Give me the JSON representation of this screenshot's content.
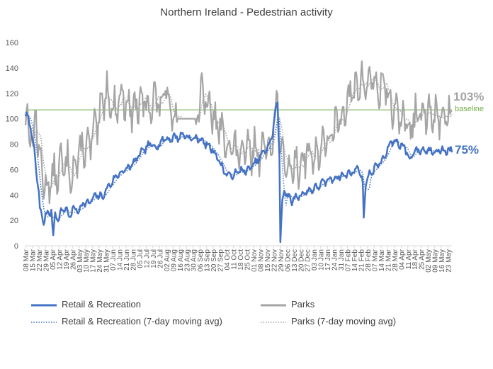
{
  "chart_data": {
    "type": "line",
    "title": "Northern Ireland - Pedestrian activity",
    "xlabel": "",
    "ylabel": "",
    "ylim": [
      0,
      160
    ],
    "yticks": [
      0,
      20,
      40,
      60,
      80,
      100,
      120,
      140,
      160
    ],
    "x_start": "2020-03-08",
    "x_end": "2021-05-27",
    "xtick_labels": [
      "08 Mar",
      "15 Mar",
      "22 Mar",
      "29 Mar",
      "05 Apr",
      "12 Apr",
      "19 Apr",
      "26 Apr",
      "03 May",
      "10 May",
      "17 May",
      "24 May",
      "31 May",
      "07 Jun",
      "14 Jun",
      "21 Jun",
      "28 Jun",
      "05 Jul",
      "12 Jul",
      "19 Jul",
      "26 Jul",
      "02 Aug",
      "09 Aug",
      "16 Aug",
      "23 Aug",
      "30 Aug",
      "06 Sep",
      "13 Sep",
      "20 Sep",
      "27 Sep",
      "04 Oct",
      "11 Oct",
      "18 Oct",
      "25 Oct",
      "01 Nov",
      "08 Nov",
      "15 Nov",
      "22 Nov",
      "29 Nov",
      "06 Dec",
      "13 Dec",
      "20 Dec",
      "27 Dec",
      "03 Jan",
      "10 Jan",
      "17 Jan",
      "24 Jan",
      "31 Jan",
      "07 Feb",
      "14 Feb",
      "21 Feb",
      "28 Feb",
      "07 Mar",
      "14 Mar",
      "21 Mar",
      "28 Mar",
      "04 Apr",
      "11 Apr",
      "18 Apr",
      "25 Apr",
      "02 May",
      "09 May",
      "16 May",
      "23 May"
    ],
    "baseline": {
      "value": 107,
      "label": "baseline",
      "color": "#70ad47"
    },
    "end_labels": {
      "parks": "103%",
      "retail": "75%"
    },
    "series": [
      {
        "name": "Retail & Recreation",
        "color": "#4472c4",
        "style": "solid",
        "key_points": [
          [
            0,
            103
          ],
          [
            4,
            98
          ],
          [
            8,
            82
          ],
          [
            11,
            60
          ],
          [
            14,
            42
          ],
          [
            15,
            27
          ],
          [
            17,
            24
          ],
          [
            19,
            17
          ],
          [
            21,
            26
          ],
          [
            24,
            24
          ],
          [
            27,
            28
          ],
          [
            29,
            7
          ],
          [
            31,
            27
          ],
          [
            34,
            20
          ],
          [
            38,
            28
          ],
          [
            42,
            30
          ],
          [
            46,
            22
          ],
          [
            50,
            30
          ],
          [
            55,
            27
          ],
          [
            60,
            34
          ],
          [
            65,
            33
          ],
          [
            70,
            37
          ],
          [
            75,
            40
          ],
          [
            80,
            38
          ],
          [
            85,
            45
          ],
          [
            90,
            50
          ],
          [
            95,
            55
          ],
          [
            100,
            58
          ],
          [
            105,
            60
          ],
          [
            110,
            63
          ],
          [
            115,
            67
          ],
          [
            120,
            73
          ],
          [
            125,
            76
          ],
          [
            130,
            80
          ],
          [
            135,
            78
          ],
          [
            140,
            80
          ],
          [
            145,
            85
          ],
          [
            150,
            83
          ],
          [
            155,
            86
          ],
          [
            160,
            85
          ],
          [
            165,
            88
          ],
          [
            170,
            85
          ],
          [
            175,
            84
          ],
          [
            180,
            85
          ],
          [
            185,
            82
          ],
          [
            190,
            79
          ],
          [
            195,
            76
          ],
          [
            200,
            70
          ],
          [
            205,
            62
          ],
          [
            210,
            56
          ],
          [
            215,
            55
          ],
          [
            220,
            57
          ],
          [
            225,
            60
          ],
          [
            230,
            58
          ],
          [
            235,
            62
          ],
          [
            240,
            65
          ],
          [
            245,
            70
          ],
          [
            250,
            75
          ],
          [
            255,
            80
          ],
          [
            258,
            90
          ],
          [
            261,
            105
          ],
          [
            263,
            115
          ],
          [
            265,
            70
          ],
          [
            266,
            3
          ],
          [
            268,
            35
          ],
          [
            270,
            45
          ],
          [
            273,
            40
          ],
          [
            277,
            35
          ],
          [
            282,
            38
          ],
          [
            287,
            40
          ],
          [
            292,
            42
          ],
          [
            297,
            44
          ],
          [
            302,
            45
          ],
          [
            307,
            48
          ],
          [
            312,
            50
          ],
          [
            317,
            52
          ],
          [
            322,
            53
          ],
          [
            327,
            55
          ],
          [
            332,
            55
          ],
          [
            337,
            57
          ],
          [
            342,
            58
          ],
          [
            345,
            60
          ],
          [
            348,
            62
          ],
          [
            352,
            48
          ],
          [
            353,
            22
          ],
          [
            355,
            50
          ],
          [
            360,
            57
          ],
          [
            365,
            62
          ],
          [
            370,
            65
          ],
          [
            375,
            70
          ],
          [
            380,
            80
          ],
          [
            385,
            83
          ],
          [
            390,
            80
          ],
          [
            395,
            78
          ],
          [
            399,
            72
          ],
          [
            401,
            67
          ],
          [
            403,
            70
          ],
          [
            405,
            75
          ]
        ],
        "noise_amp": 4
      },
      {
        "name": "Parks",
        "color": "#a5a5a5",
        "style": "solid",
        "key_points": [
          [
            0,
            100
          ],
          [
            4,
            95
          ],
          [
            8,
            78
          ],
          [
            11,
            108
          ],
          [
            14,
            70
          ],
          [
            17,
            60
          ],
          [
            20,
            50
          ],
          [
            24,
            45
          ],
          [
            28,
            55
          ],
          [
            32,
            52
          ],
          [
            36,
            65
          ],
          [
            40,
            60
          ],
          [
            44,
            65
          ],
          [
            48,
            58
          ],
          [
            52,
            62
          ],
          [
            56,
            70
          ],
          [
            60,
            80
          ],
          [
            64,
            75
          ],
          [
            68,
            82
          ],
          [
            72,
            90
          ],
          [
            76,
            95
          ],
          [
            80,
            110
          ],
          [
            84,
            125
          ],
          [
            88,
            115
          ],
          [
            92,
            105
          ],
          [
            96,
            112
          ],
          [
            100,
            120
          ],
          [
            104,
            115
          ],
          [
            108,
            110
          ],
          [
            112,
            105
          ],
          [
            116,
            112
          ],
          [
            120,
            108
          ],
          [
            124,
            115
          ],
          [
            128,
            110
          ],
          [
            132,
            112
          ],
          [
            136,
            118
          ],
          [
            140,
            108
          ],
          [
            144,
            118
          ],
          [
            148,
            122
          ],
          [
            152,
            110
          ],
          [
            156,
            100
          ],
          [
            158,
            100
          ],
          [
            178,
            100
          ],
          [
            180,
            110
          ],
          [
            184,
            118
          ],
          [
            188,
            112
          ],
          [
            192,
            108
          ],
          [
            196,
            100
          ],
          [
            200,
            95
          ],
          [
            204,
            90
          ],
          [
            208,
            85
          ],
          [
            212,
            80
          ],
          [
            216,
            78
          ],
          [
            220,
            72
          ],
          [
            224,
            75
          ],
          [
            228,
            70
          ],
          [
            232,
            75
          ],
          [
            236,
            72
          ],
          [
            240,
            78
          ],
          [
            244,
            72
          ],
          [
            248,
            80
          ],
          [
            252,
            75
          ],
          [
            256,
            85
          ],
          [
            260,
            95
          ],
          [
            263,
            120
          ],
          [
            266,
            70
          ],
          [
            270,
            65
          ],
          [
            274,
            62
          ],
          [
            278,
            60
          ],
          [
            282,
            65
          ],
          [
            286,
            62
          ],
          [
            290,
            70
          ],
          [
            294,
            75
          ],
          [
            298,
            72
          ],
          [
            302,
            70
          ],
          [
            306,
            75
          ],
          [
            310,
            78
          ],
          [
            314,
            80
          ],
          [
            318,
            85
          ],
          [
            322,
            90
          ],
          [
            326,
            100
          ],
          [
            330,
            105
          ],
          [
            334,
            110
          ],
          [
            338,
            115
          ],
          [
            342,
            120
          ],
          [
            346,
            125
          ],
          [
            350,
            130
          ],
          [
            354,
            125
          ],
          [
            358,
            130
          ],
          [
            362,
            135
          ],
          [
            366,
            120
          ],
          [
            370,
            125
          ],
          [
            374,
            130
          ],
          [
            378,
            120
          ],
          [
            382,
            112
          ],
          [
            386,
            100
          ],
          [
            390,
            105
          ],
          [
            394,
            100
          ],
          [
            398,
            95
          ],
          [
            402,
            88
          ],
          [
            405,
            103
          ]
        ],
        "noise_amp": 20
      },
      {
        "name": "Retail & Recreation (7-day moving avg)",
        "color": "#4472c4",
        "style": "dotted",
        "derived_from": "Retail & Recreation"
      },
      {
        "name": "Parks (7-day moving avg)",
        "color": "#a5a5a5",
        "style": "dotted",
        "derived_from": "Parks"
      }
    ],
    "legend": [
      {
        "label": "Retail & Recreation",
        "color": "#4472c4",
        "style": "solid"
      },
      {
        "label": "Parks",
        "color": "#a5a5a5",
        "style": "solid"
      },
      {
        "label": "Retail & Recreation (7-day moving avg)",
        "color": "#4472c4",
        "style": "dotted"
      },
      {
        "label": "Parks (7-day moving avg)",
        "color": "#a5a5a5",
        "style": "dotted"
      }
    ]
  }
}
